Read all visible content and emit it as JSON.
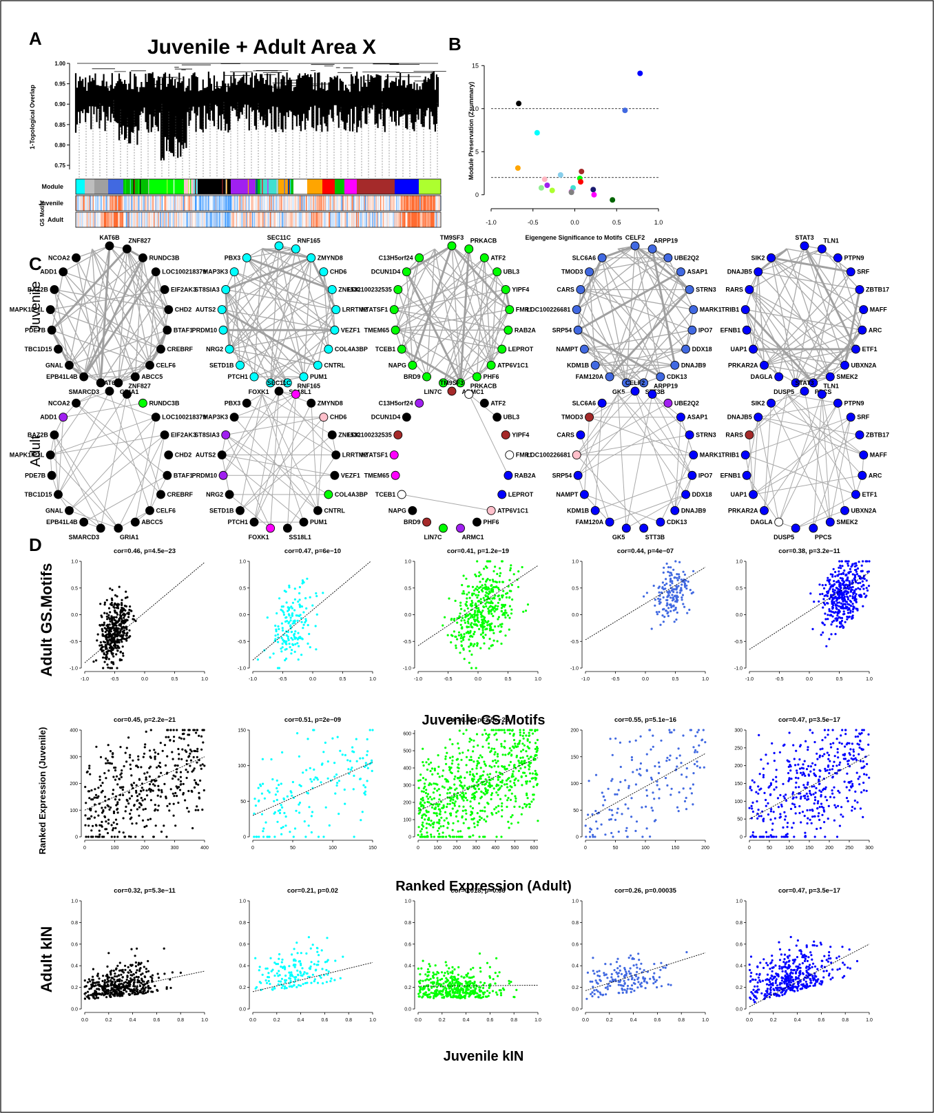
{
  "figure": {
    "panel_labels": [
      "A",
      "B",
      "C",
      "D"
    ],
    "row_labels": {
      "juvenile": "Juvenile",
      "adult": "Adult"
    }
  },
  "panel_a": {
    "title": "Juvenile + Adult Area X",
    "ylabel": "1-Topological Overlap",
    "yticks": [
      "1.00",
      "0.95",
      "0.90",
      "0.85",
      "0.80",
      "0.75"
    ],
    "track_labels": {
      "module": "Module",
      "juvenile": "Juvenile",
      "adult": "Adult",
      "gs": "GS Motifs"
    },
    "module_colors": [
      "#00ffff",
      "#bebebe",
      "#a0a0a0",
      "#4169e1",
      "#00c000",
      "#00ff00",
      "#ffc0cb",
      "#000000",
      "#a020f0",
      "#40e0d0",
      "#ffa500",
      "#ffffff",
      "#ff0000",
      "#ff00ff",
      "#a52a2a",
      "#0000ff",
      "#adff2f"
    ]
  },
  "panel_b": {
    "chart_data": {
      "type": "scatter",
      "xlabel": "Eigengene Significance to Motifs",
      "ylabel": "Module Preservation (Zsummary)",
      "xlim": [
        -1.0,
        1.0
      ],
      "ylim": [
        -0.5,
        15.5
      ],
      "xticks": [
        "-1.0",
        "-0.5",
        "0.0",
        "0.5",
        "1.0"
      ],
      "yticks": [
        "0",
        "5",
        "10",
        "15"
      ],
      "hlines": [
        10,
        2
      ],
      "points": [
        {
          "x": 0.78,
          "y": 14.1,
          "color": "#0000ff"
        },
        {
          "x": 0.6,
          "y": 9.8,
          "color": "#4169e1"
        },
        {
          "x": -0.67,
          "y": 10.6,
          "color": "#000000"
        },
        {
          "x": -0.45,
          "y": 7.2,
          "color": "#00ffff"
        },
        {
          "x": -0.68,
          "y": 3.1,
          "color": "#ffa500"
        },
        {
          "x": -0.17,
          "y": 2.3,
          "color": "#87ceeb"
        },
        {
          "x": -0.36,
          "y": 1.8,
          "color": "#ffb6c1"
        },
        {
          "x": 0.08,
          "y": 2.7,
          "color": "#a52a2a"
        },
        {
          "x": 0.06,
          "y": 1.9,
          "color": "#00ff00"
        },
        {
          "x": 0.07,
          "y": 1.5,
          "color": "#ff0000"
        },
        {
          "x": -0.4,
          "y": 0.8,
          "color": "#90ee90"
        },
        {
          "x": -0.33,
          "y": 1.1,
          "color": "#a020f0"
        },
        {
          "x": -0.27,
          "y": 0.5,
          "color": "#adff2f"
        },
        {
          "x": -0.02,
          "y": 0.8,
          "color": "#40e0d0"
        },
        {
          "x": -0.04,
          "y": 0.35,
          "color": "#ff00ff"
        },
        {
          "x": -0.04,
          "y": 0.3,
          "color": "#cccccc"
        },
        {
          "x": -0.04,
          "y": 0.28,
          "color": "#808080"
        },
        {
          "x": 0.22,
          "y": 0.6,
          "color": "#191970"
        },
        {
          "x": 0.23,
          "y": 0.0,
          "color": "#ff00ff"
        },
        {
          "x": 0.45,
          "y": -0.6,
          "color": "#006400"
        }
      ]
    }
  },
  "panel_c": {
    "networks": [
      {
        "id": "black",
        "genes": [
          "KAT6B",
          "ZNF827",
          "RUNDC3B",
          "LOC100218379",
          "EIF2AK3",
          "CHD2",
          "BTAF1",
          "CREBRF",
          "CELF6",
          "ABCC5",
          "GRIA1",
          "SMARCD3",
          "EPB41L4B",
          "GNAL",
          "TBC1D15",
          "PDE7B",
          "MAPK1IP1L",
          "BAZ2B",
          "ADD1",
          "NCOA2"
        ],
        "juvenile_colors": [
          "#000000",
          "#000000",
          "#000000",
          "#000000",
          "#000000",
          "#000000",
          "#000000",
          "#000000",
          "#000000",
          "#000000",
          "#000000",
          "#000000",
          "#000000",
          "#000000",
          "#000000",
          "#000000",
          "#000000",
          "#000000",
          "#000000",
          "#000000"
        ],
        "adult_colors": [
          "#000000",
          "#000000",
          "#00ff00",
          "#000000",
          "#000000",
          "#000000",
          "#000000",
          "#000000",
          "#000000",
          "#000000",
          "#000000",
          "#000000",
          "#000000",
          "#000000",
          "#000000",
          "#000000",
          "#000000",
          "#000000",
          "#a020f0",
          "#000000"
        ]
      },
      {
        "id": "cyan",
        "genes": [
          "SEC11C",
          "RNF165",
          "ZMYND8",
          "CHD6",
          "ZNF532",
          "LRRTM2",
          "VEZF1",
          "COL4A3BP",
          "CNTRL",
          "PUM1",
          "SS18L1",
          "FOXK1",
          "PTCH1",
          "SETD1B",
          "NRG2",
          "PRDM10",
          "AUTS2",
          "ST8SIA3",
          "MAP3K3",
          "PBX3"
        ],
        "juvenile_colors": [
          "#00ffff",
          "#00ffff",
          "#00ffff",
          "#00ffff",
          "#00ffff",
          "#00ffff",
          "#00ffff",
          "#00ffff",
          "#00ffff",
          "#00ffff",
          "#00ffff",
          "#00ffff",
          "#00ffff",
          "#00ffff",
          "#00ffff",
          "#00ffff",
          "#00ffff",
          "#00ffff",
          "#00ffff",
          "#00ffff"
        ],
        "adult_colors": [
          "#000000",
          "#ff00ff",
          "#000000",
          "#ffc0cb",
          "#000000",
          "#000000",
          "#000000",
          "#00ff00",
          "#000000",
          "#000000",
          "#000000",
          "#ff00ff",
          "#000000",
          "#000000",
          "#000000",
          "#a020f0",
          "#000000",
          "#a020f0",
          "#000000",
          "#000000"
        ]
      },
      {
        "id": "green",
        "genes": [
          "TM9SF3",
          "PRKACB",
          "ATF2",
          "UBL3",
          "YIPF4",
          "FMR1",
          "RAB2A",
          "LEPROT",
          "ATP6V1C1",
          "PHF6",
          "ARMC1",
          "LIN7C",
          "BRD9",
          "NAPG",
          "TCEB1",
          "TMEM65",
          "HTATSF1",
          "LOC100232535",
          "DCUN1D4",
          "C13H5orf24"
        ],
        "juvenile_colors": [
          "#00ff00",
          "#00ff00",
          "#00ff00",
          "#00ff00",
          "#00ff00",
          "#00ff00",
          "#00ff00",
          "#00ff00",
          "#00ff00",
          "#00ff00",
          "#00ff00",
          "#00ff00",
          "#00ff00",
          "#00ff00",
          "#00ff00",
          "#00ff00",
          "#00ff00",
          "#00ff00",
          "#00ff00",
          "#00ff00"
        ],
        "adult_colors": [
          "#a52a2a",
          "#ffffff",
          "#000000",
          "#000000",
          "#a52a2a",
          "#ffffff",
          "#0000ff",
          "#0000ff",
          "#ffc0cb",
          "#000000",
          "#a020f0",
          "#00ff00",
          "#a52a2a",
          "#000000",
          "#ffffff",
          "#ff00ff",
          "#ff00ff",
          "#a52a2a",
          "#000000",
          "#a020f0"
        ]
      },
      {
        "id": "royalblue",
        "genes": [
          "CELF2",
          "ARPP19",
          "UBE2Q2",
          "ASAP1",
          "STRN3",
          "MARK1",
          "IPO7",
          "DDX18",
          "DNAJB9",
          "CDK13",
          "STT3B",
          "GK5",
          "FAM120A",
          "KDM1B",
          "NAMPT",
          "SRP54",
          "LOC100226681",
          "CARS",
          "TMOD3",
          "SLC6A6"
        ],
        "juvenile_colors": [
          "#4169e1",
          "#4169e1",
          "#4169e1",
          "#4169e1",
          "#4169e1",
          "#4169e1",
          "#4169e1",
          "#4169e1",
          "#4169e1",
          "#4169e1",
          "#4169e1",
          "#4169e1",
          "#4169e1",
          "#4169e1",
          "#4169e1",
          "#4169e1",
          "#4169e1",
          "#4169e1",
          "#4169e1",
          "#4169e1"
        ],
        "adult_colors": [
          "#0000ff",
          "#0000ff",
          "#a020f0",
          "#0000ff",
          "#0000ff",
          "#0000ff",
          "#0000ff",
          "#0000ff",
          "#0000ff",
          "#0000ff",
          "#0000ff",
          "#0000ff",
          "#0000ff",
          "#0000ff",
          "#0000ff",
          "#0000ff",
          "#ffc0cb",
          "#0000ff",
          "#a52a2a",
          "#0000ff"
        ]
      },
      {
        "id": "blue",
        "genes": [
          "STAT3",
          "TLN1",
          "PTPN9",
          "SRF",
          "ZBTB17",
          "MAFF",
          "ARC",
          "ETF1",
          "UBXN2A",
          "SMEK2",
          "PPCS",
          "DUSP5",
          "DAGLA",
          "PRKAR2A",
          "UAP1",
          "EFNB1",
          "TRIB1",
          "RARS",
          "DNAJB5",
          "SIK2"
        ],
        "juvenile_colors": [
          "#0000ff",
          "#0000ff",
          "#0000ff",
          "#0000ff",
          "#0000ff",
          "#0000ff",
          "#0000ff",
          "#0000ff",
          "#0000ff",
          "#0000ff",
          "#0000ff",
          "#0000ff",
          "#0000ff",
          "#0000ff",
          "#0000ff",
          "#0000ff",
          "#0000ff",
          "#0000ff",
          "#0000ff",
          "#0000ff"
        ],
        "adult_colors": [
          "#0000ff",
          "#0000ff",
          "#0000ff",
          "#0000ff",
          "#0000ff",
          "#0000ff",
          "#0000ff",
          "#0000ff",
          "#0000ff",
          "#0000ff",
          "#0000ff",
          "#0000ff",
          "#ffffff",
          "#0000ff",
          "#0000ff",
          "#0000ff",
          "#0000ff",
          "#a52a2a",
          "#0000ff",
          "#0000ff"
        ]
      }
    ]
  },
  "panel_d": {
    "chart_data": [
      {
        "type": "scatter",
        "row": 1,
        "col": 1,
        "title": "cor=0.46, p=4.5e−23",
        "color": "#000000",
        "xlim": [
          -1,
          1
        ],
        "ylim": [
          -1,
          1
        ],
        "center": [
          -0.5,
          -0.3
        ],
        "spread": [
          0.12,
          0.28
        ],
        "line": [
          0.94,
          0.04
        ]
      },
      {
        "type": "scatter",
        "row": 1,
        "col": 2,
        "title": "cor=0.47, p=6e−10",
        "color": "#00ffff",
        "xlim": [
          -1,
          1
        ],
        "ylim": [
          -1,
          1
        ],
        "center": [
          -0.35,
          -0.2
        ],
        "spread": [
          0.22,
          0.35
        ],
        "line": [
          0.94,
          0.09
        ]
      },
      {
        "type": "scatter",
        "row": 1,
        "col": 3,
        "title": "cor=0.41, p=1.2e−19",
        "color": "#00ff00",
        "xlim": [
          -1,
          1
        ],
        "ylim": [
          -1,
          1
        ],
        "center": [
          0.1,
          0.1
        ],
        "spread": [
          0.25,
          0.35
        ],
        "line": [
          0.75,
          0.17
        ]
      },
      {
        "type": "scatter",
        "row": 1,
        "col": 4,
        "title": "cor=0.44, p=4e−07",
        "color": "#4169e1",
        "xlim": [
          -1,
          1
        ],
        "ylim": [
          -1,
          1
        ],
        "center": [
          0.45,
          0.4
        ],
        "spread": [
          0.15,
          0.25
        ],
        "line": [
          0.68,
          0.21
        ]
      },
      {
        "type": "scatter",
        "row": 1,
        "col": 5,
        "title": "cor=0.38, p=3.2e−11",
        "color": "#0000ff",
        "xlim": [
          -1,
          1
        ],
        "ylim": [
          -1,
          1
        ],
        "center": [
          0.55,
          0.35
        ],
        "spread": [
          0.18,
          0.3
        ],
        "line": [
          0.72,
          0.07
        ]
      },
      {
        "type": "scatter",
        "row": 2,
        "col": 1,
        "title": "cor=0.45, p=2.2e−21",
        "color": "#000000",
        "xlim": [
          0,
          400
        ],
        "ylim": [
          0,
          400
        ],
        "xticks": [
          0,
          100,
          200,
          300,
          400
        ],
        "yticks": [
          0,
          100,
          200,
          300,
          400
        ],
        "center": [
          200,
          200
        ],
        "spread": [
          115,
          115
        ],
        "line": [
          0.5,
          100
        ]
      },
      {
        "type": "scatter",
        "row": 2,
        "col": 2,
        "title": "cor=0.51, p=2e−09",
        "color": "#00ffff",
        "xlim": [
          0,
          150
        ],
        "ylim": [
          0,
          150
        ],
        "xticks": [
          0,
          50,
          100,
          150
        ],
        "yticks": [
          0,
          50,
          100,
          150
        ],
        "center": [
          60,
          60
        ],
        "spread": [
          35,
          35
        ],
        "line": [
          0.5,
          30
        ]
      },
      {
        "type": "scatter",
        "row": 2,
        "col": 3,
        "title": "cor=0.41, p=2.5e−26",
        "color": "#00ff00",
        "xlim": [
          0,
          620
        ],
        "ylim": [
          0,
          620
        ],
        "xticks": [
          0,
          100,
          200,
          300,
          400,
          500,
          600
        ],
        "yticks": [
          0,
          100,
          200,
          300,
          400,
          500,
          600
        ],
        "center": [
          310,
          310
        ],
        "spread": [
          175,
          175
        ],
        "line": [
          0.5,
          150
        ]
      },
      {
        "type": "scatter",
        "row": 2,
        "col": 4,
        "title": "cor=0.55, p=5.1e−16",
        "color": "#4169e1",
        "xlim": [
          0,
          200
        ],
        "ylim": [
          0,
          200
        ],
        "xticks": [
          0,
          50,
          100,
          150,
          200
        ],
        "yticks": [
          0,
          50,
          100,
          150,
          200
        ],
        "center": [
          95,
          95
        ],
        "spread": [
          52,
          52
        ],
        "line": [
          0.62,
          32
        ]
      },
      {
        "type": "scatter",
        "row": 2,
        "col": 5,
        "title": "cor=0.47, p=3.5e−17",
        "color": "#0000ff",
        "xlim": [
          0,
          300
        ],
        "ylim": [
          0,
          300
        ],
        "xticks": [
          0,
          50,
          100,
          150,
          200,
          250,
          300
        ],
        "yticks": [
          0,
          50,
          100,
          150,
          200,
          250,
          300
        ],
        "center": [
          145,
          145
        ],
        "spread": [
          82,
          82
        ],
        "line": [
          0.6,
          50
        ]
      },
      {
        "type": "scatter",
        "row": 3,
        "col": 1,
        "title": "cor=0.32, p=5.3e−11",
        "color": "#000000",
        "xlim": [
          0,
          1
        ],
        "ylim": [
          0,
          1
        ],
        "center": [
          0.3,
          0.22
        ],
        "spread": [
          0.18,
          0.15
        ],
        "line": [
          0.23,
          0.12
        ]
      },
      {
        "type": "scatter",
        "row": 3,
        "col": 2,
        "title": "cor=0.21, p=0.02",
        "color": "#00ffff",
        "xlim": [
          0,
          1
        ],
        "ylim": [
          0,
          1
        ],
        "center": [
          0.35,
          0.3
        ],
        "spread": [
          0.18,
          0.2
        ],
        "line": [
          0.27,
          0.16
        ]
      },
      {
        "type": "scatter",
        "row": 3,
        "col": 3,
        "title": "cor=0.018, p=0.66",
        "color": "#00ff00",
        "xlim": [
          0,
          1
        ],
        "ylim": [
          0,
          1
        ],
        "center": [
          0.3,
          0.2
        ],
        "spread": [
          0.2,
          0.14
        ],
        "line": [
          0.01,
          0.21
        ]
      },
      {
        "type": "scatter",
        "row": 3,
        "col": 4,
        "title": "cor=0.26, p=0.00035",
        "color": "#4169e1",
        "xlim": [
          0,
          1
        ],
        "ylim": [
          0,
          1
        ],
        "center": [
          0.35,
          0.25
        ],
        "spread": [
          0.18,
          0.17
        ],
        "line": [
          0.35,
          0.17
        ]
      },
      {
        "type": "scatter",
        "row": 3,
        "col": 5,
        "title": "cor=0.47, p=3.5e−17",
        "color": "#0000ff",
        "xlim": [
          0,
          1
        ],
        "ylim": [
          0,
          1
        ],
        "center": [
          0.35,
          0.25
        ],
        "spread": [
          0.2,
          0.2
        ],
        "line": [
          0.58,
          0.02
        ]
      }
    ],
    "axis_labels": {
      "row1_y": "Adult GS.Motifs",
      "row1_x": "Juvenile GS.Motifs",
      "row2_y": "Ranked Expression (Juvenile)",
      "row2_x": "Ranked Expression (Adult)",
      "row3_y": "Adult kIN",
      "row3_x": "Juvenile kIN"
    }
  }
}
